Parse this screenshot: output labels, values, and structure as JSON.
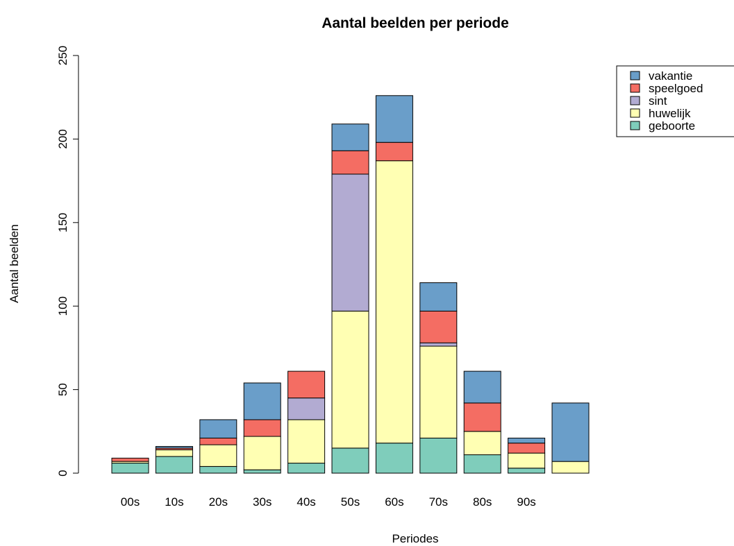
{
  "chart_data": {
    "type": "bar",
    "stacked": true,
    "title": "Aantal beelden per periode",
    "xlabel": "Periodes",
    "ylabel": "Aantal beelden",
    "ylim": [
      0,
      250
    ],
    "yticks": [
      0,
      50,
      100,
      150,
      200,
      250
    ],
    "categories": [
      "00s",
      "10s",
      "20s",
      "30s",
      "40s",
      "50s",
      "60s",
      "70s",
      "80s",
      "90s",
      ""
    ],
    "series": [
      {
        "name": "geboorte",
        "color": "#7fcdbb",
        "values": [
          6,
          10,
          4,
          2,
          6,
          15,
          18,
          21,
          11,
          3,
          0
        ]
      },
      {
        "name": "huwelijk",
        "color": "#ffffb3",
        "values": [
          1,
          4,
          13,
          20,
          26,
          82,
          169,
          55,
          14,
          9,
          7
        ]
      },
      {
        "name": "sint",
        "color": "#b2abd2",
        "values": [
          0,
          0,
          0,
          0,
          13,
          82,
          0,
          2,
          0,
          0,
          0
        ]
      },
      {
        "name": "speelgoed",
        "color": "#f46d63",
        "values": [
          2,
          1,
          4,
          10,
          16,
          14,
          11,
          19,
          17,
          6,
          0
        ]
      },
      {
        "name": "vakantie",
        "color": "#6a9ec9",
        "values": [
          0,
          1,
          11,
          22,
          0,
          16,
          28,
          17,
          19,
          3,
          35
        ]
      }
    ],
    "legend": {
      "position": "top-right",
      "order": [
        "vakantie",
        "speelgoed",
        "sint",
        "huwelijk",
        "geboorte"
      ]
    },
    "grid": false
  }
}
